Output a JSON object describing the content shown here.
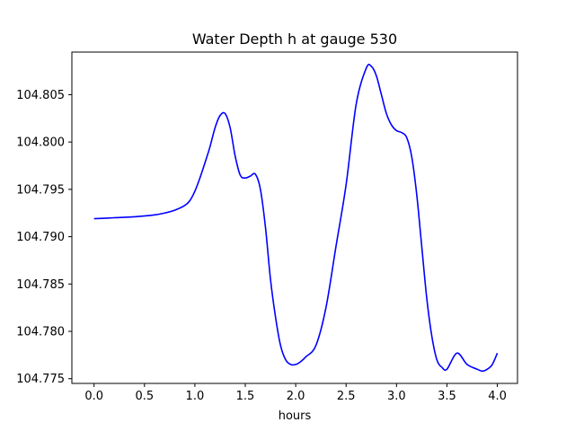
{
  "chart_data": {
    "type": "line",
    "title": "Water Depth h at gauge 530",
    "xlabel": "hours",
    "ylabel": "",
    "xlim": [
      -0.22,
      4.2
    ],
    "ylim": [
      104.7745,
      104.8095
    ],
    "grid": false,
    "x_ticks": [
      0.0,
      0.5,
      1.0,
      1.5,
      2.0,
      2.5,
      3.0,
      3.5,
      4.0
    ],
    "x_tick_labels": [
      "0.0",
      "0.5",
      "1.0",
      "1.5",
      "2.0",
      "2.5",
      "3.0",
      "3.5",
      "4.0"
    ],
    "y_ticks": [
      104.775,
      104.78,
      104.785,
      104.79,
      104.795,
      104.8,
      104.805
    ],
    "y_tick_labels": [
      "104.775",
      "104.780",
      "104.785",
      "104.790",
      "104.795",
      "104.800",
      "104.805"
    ],
    "series": [
      {
        "color": "#0000ff",
        "x": [
          0.0,
          0.2,
          0.4,
          0.6,
          0.7,
          0.8,
          0.9,
          0.95,
          1.0,
          1.05,
          1.1,
          1.15,
          1.2,
          1.25,
          1.3,
          1.35,
          1.4,
          1.45,
          1.5,
          1.55,
          1.6,
          1.65,
          1.7,
          1.75,
          1.8,
          1.85,
          1.9,
          1.95,
          2.0,
          2.05,
          2.1,
          2.2,
          2.3,
          2.4,
          2.5,
          2.6,
          2.7,
          2.75,
          2.8,
          2.85,
          2.9,
          2.95,
          3.0,
          3.05,
          3.1,
          3.15,
          3.2,
          3.25,
          3.3,
          3.35,
          3.4,
          3.45,
          3.5,
          3.6,
          3.7,
          3.8,
          3.85,
          3.9,
          3.95,
          4.0
        ],
        "y": [
          104.7919,
          104.792,
          104.7921,
          104.7923,
          104.7925,
          104.7928,
          104.7933,
          104.7938,
          104.7948,
          104.7962,
          104.7978,
          104.7995,
          104.8015,
          104.8028,
          104.803,
          104.8015,
          104.7985,
          104.7965,
          104.7962,
          104.7964,
          104.7966,
          104.795,
          104.791,
          104.7855,
          104.7815,
          104.7785,
          104.777,
          104.7765,
          104.7765,
          104.7768,
          104.7773,
          104.7785,
          104.7825,
          104.789,
          104.7955,
          104.804,
          104.8078,
          104.808,
          104.807,
          104.805,
          104.803,
          104.8018,
          104.8012,
          104.801,
          104.8005,
          104.7985,
          104.7945,
          104.789,
          104.7835,
          104.7795,
          104.777,
          104.7762,
          104.776,
          104.7777,
          104.7765,
          104.776,
          104.7758,
          104.776,
          104.7765,
          104.7777
        ]
      }
    ]
  }
}
